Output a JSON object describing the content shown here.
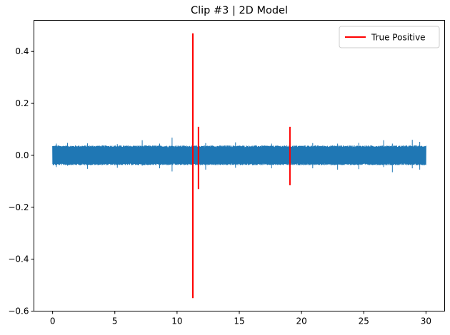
{
  "chart_data": {
    "type": "line",
    "title": "Clip #3 | 2D Model",
    "xlabel": "",
    "ylabel": "",
    "xlim": [
      -1.5,
      31.5
    ],
    "ylim": [
      -0.6,
      0.52
    ],
    "x_ticks": [
      0,
      5,
      10,
      15,
      20,
      25,
      30
    ],
    "y_ticks": [
      -0.6,
      -0.4,
      -0.2,
      0.0,
      0.2,
      0.4
    ],
    "x_tick_labels": [
      "0",
      "5",
      "10",
      "15",
      "20",
      "25",
      "30"
    ],
    "y_tick_labels": [
      "−0.6",
      "−0.4",
      "−0.2",
      "0.0",
      "0.2",
      "0.4"
    ],
    "grid": false,
    "legend_position": "top-right",
    "series": [
      {
        "kind": "noise-signal",
        "color": "#1f77b4",
        "x_range": [
          0,
          30
        ],
        "band_amplitude": 0.038,
        "peaks": [
          {
            "x": 0.3,
            "hi": 0.045,
            "lo": -0.045
          },
          {
            "x": 1.2,
            "hi": 0.048,
            "lo": -0.04
          },
          {
            "x": 2.8,
            "hi": 0.046,
            "lo": -0.052
          },
          {
            "x": 5.2,
            "hi": 0.043,
            "lo": -0.048
          },
          {
            "x": 7.2,
            "hi": 0.058,
            "lo": -0.04
          },
          {
            "x": 8.6,
            "hi": 0.045,
            "lo": -0.05
          },
          {
            "x": 9.6,
            "hi": 0.068,
            "lo": -0.062
          },
          {
            "x": 12.3,
            "hi": 0.047,
            "lo": -0.055
          },
          {
            "x": 14.7,
            "hi": 0.05,
            "lo": -0.048
          },
          {
            "x": 17.6,
            "hi": 0.045,
            "lo": -0.05
          },
          {
            "x": 20.9,
            "hi": 0.047,
            "lo": -0.05
          },
          {
            "x": 22.9,
            "hi": 0.045,
            "lo": -0.055
          },
          {
            "x": 24.6,
            "hi": 0.048,
            "lo": -0.053
          },
          {
            "x": 26.6,
            "hi": 0.058,
            "lo": -0.045
          },
          {
            "x": 27.3,
            "hi": 0.045,
            "lo": -0.065
          },
          {
            "x": 28.9,
            "hi": 0.06,
            "lo": -0.05
          },
          {
            "x": 29.5,
            "hi": 0.052,
            "lo": -0.055
          }
        ]
      },
      {
        "name": "True Positive",
        "kind": "vertical-segments",
        "color": "#ff0000",
        "segments": [
          {
            "x": 11.27,
            "y_min": -0.55,
            "y_max": 0.47
          },
          {
            "x": 11.72,
            "y_min": -0.13,
            "y_max": 0.11
          },
          {
            "x": 19.07,
            "y_min": -0.115,
            "y_max": 0.11
          }
        ]
      }
    ]
  },
  "legend": {
    "entries": [
      {
        "label": "True Positive",
        "color": "#ff0000"
      }
    ]
  }
}
